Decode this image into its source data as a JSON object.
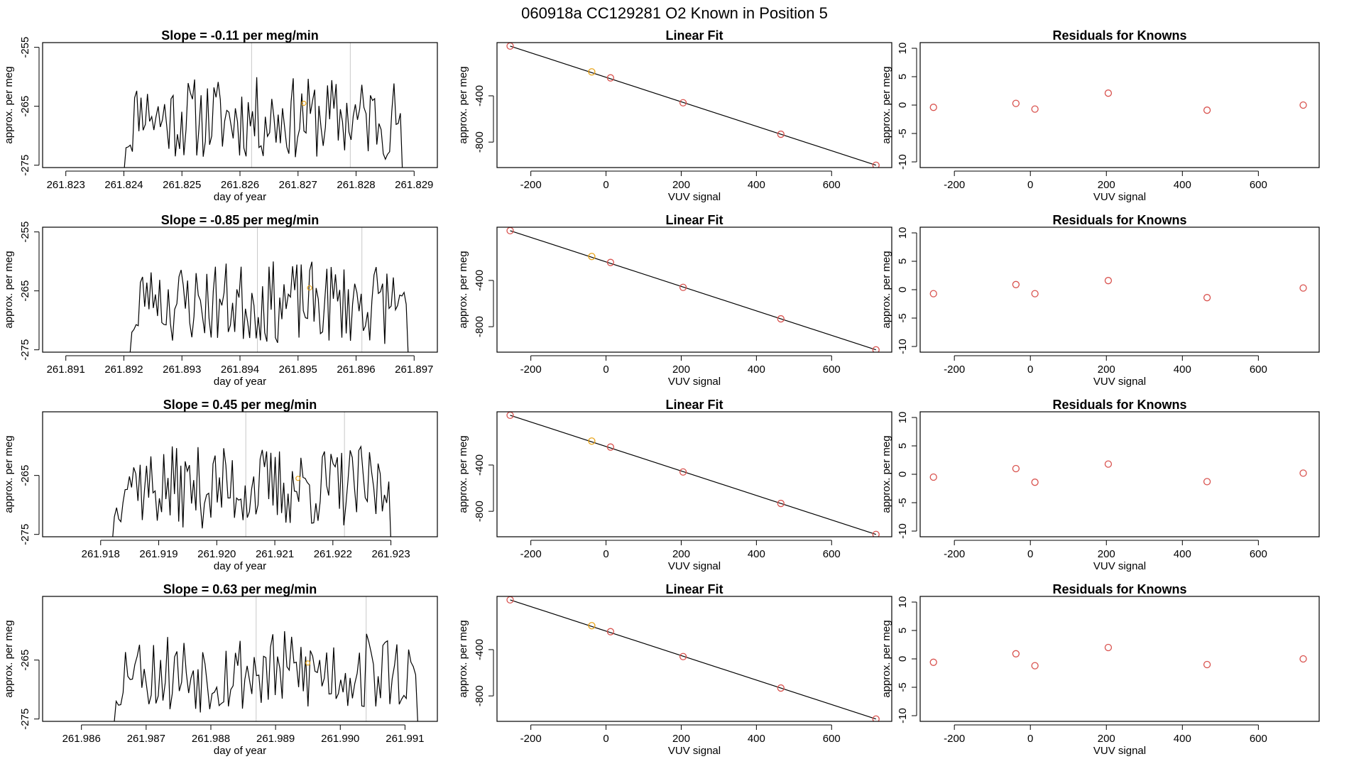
{
  "figure": {
    "header": "060918a      CC129281    O2 Known in Position  5"
  },
  "colors": {
    "fit_point": "#e8a317",
    "line": "#000000",
    "resid_point": "#d9534f",
    "ref_line": "#c8c8c8"
  },
  "chart_data": [
    {
      "type": "line",
      "panel": "time-series-1",
      "title": "Slope =  -0.11  per meg/min",
      "xlabel": "day of year",
      "ylabel": "approx. per meg",
      "x_ticks": [
        "261.823",
        "261.824",
        "261.825",
        "261.826",
        "261.827",
        "261.828",
        "261.829"
      ],
      "x_tick_values": [
        261.823,
        261.824,
        261.825,
        261.826,
        261.827,
        261.828,
        261.829
      ],
      "y_ticks": [
        "-275",
        "-265",
        "-255"
      ],
      "y_tick_values": [
        -275,
        -265,
        -255
      ],
      "xlim": [
        261.8226,
        261.8294
      ],
      "ylim": [
        -275.4,
        -254.2
      ],
      "series_x_range": [
        261.824,
        261.8288
      ],
      "series_seed": 11,
      "marker": {
        "x": 261.8271,
        "y": -264.5
      },
      "vlines": [
        261.8262,
        261.8279
      ]
    },
    {
      "type": "scatter",
      "panel": "linear-fit-1",
      "title": "Linear Fit",
      "xlabel": "VUV signal",
      "ylabel": "approx. per meg",
      "x_ticks": [
        "-200",
        "0",
        "200",
        "400",
        "600"
      ],
      "x_tick_values": [
        -200,
        0,
        200,
        400,
        600
      ],
      "y_ticks": [
        "-800",
        "-400"
      ],
      "y_tick_values": [
        -800,
        -400
      ],
      "xlim": [
        -290,
        760
      ],
      "ylim": [
        -1020,
        60
      ],
      "points": [
        [
          -255,
          30
        ],
        [
          -38,
          -193
        ],
        [
          12,
          -245
        ],
        [
          205,
          -460
        ],
        [
          465,
          -732
        ],
        [
          718,
          -1000
        ]
      ],
      "highlight_index": 1,
      "fit": [
        [
          -255,
          30
        ],
        [
          718,
          -1000
        ]
      ]
    },
    {
      "type": "scatter",
      "panel": "residuals-1",
      "title": "Residuals for Knowns",
      "xlabel": "VUV signal",
      "ylabel": "approx. per meg",
      "x_ticks": [
        "-200",
        "0",
        "200",
        "400",
        "600"
      ],
      "x_tick_values": [
        -200,
        0,
        200,
        400,
        600
      ],
      "y_ticks": [
        "-10",
        "-5",
        "0",
        "5",
        "10"
      ],
      "y_tick_values": [
        -10,
        -5,
        0,
        5,
        10
      ],
      "xlim": [
        -290,
        760
      ],
      "ylim": [
        -11,
        11
      ],
      "points": [
        [
          -255,
          -0.4
        ],
        [
          -38,
          0.3
        ],
        [
          12,
          -0.7
        ],
        [
          205,
          2.1
        ],
        [
          465,
          -0.9
        ],
        [
          718,
          0.0
        ]
      ]
    },
    {
      "type": "line",
      "panel": "time-series-2",
      "title": "Slope =  -0.85  per meg/min",
      "xlabel": "day of year",
      "ylabel": "approx. per meg",
      "x_ticks": [
        "261.891",
        "261.892",
        "261.893",
        "261.894",
        "261.895",
        "261.896",
        "261.897"
      ],
      "x_tick_values": [
        261.891,
        261.892,
        261.893,
        261.894,
        261.895,
        261.896,
        261.897
      ],
      "y_ticks": [
        "-275",
        "-265",
        "-255"
      ],
      "y_tick_values": [
        -275,
        -265,
        -255
      ],
      "xlim": [
        261.8906,
        261.8974
      ],
      "ylim": [
        -275.4,
        -254.2
      ],
      "series_x_range": [
        261.8921,
        261.8969
      ],
      "series_seed": 23,
      "marker": {
        "x": 261.8952,
        "y": -264.5
      },
      "vlines": [
        261.8943,
        261.8961
      ]
    },
    {
      "type": "scatter",
      "panel": "linear-fit-2",
      "title": "Linear Fit",
      "xlabel": "VUV signal",
      "ylabel": "approx. per meg",
      "x_ticks": [
        "-200",
        "0",
        "200",
        "400",
        "600"
      ],
      "x_tick_values": [
        -200,
        0,
        200,
        400,
        600
      ],
      "y_ticks": [
        "-800",
        "-400"
      ],
      "y_tick_values": [
        -800,
        -400
      ],
      "xlim": [
        -290,
        760
      ],
      "ylim": [
        -1020,
        60
      ],
      "points": [
        [
          -255,
          30
        ],
        [
          -38,
          -193
        ],
        [
          12,
          -245
        ],
        [
          205,
          -460
        ],
        [
          465,
          -732
        ],
        [
          718,
          -1000
        ]
      ],
      "highlight_index": 1,
      "fit": [
        [
          -255,
          30
        ],
        [
          718,
          -1000
        ]
      ]
    },
    {
      "type": "scatter",
      "panel": "residuals-2",
      "title": "Residuals for Knowns",
      "xlabel": "VUV signal",
      "ylabel": "approx. per meg",
      "x_ticks": [
        "-200",
        "0",
        "200",
        "400",
        "600"
      ],
      "x_tick_values": [
        -200,
        0,
        200,
        400,
        600
      ],
      "y_ticks": [
        "-10",
        "-5",
        "0",
        "5",
        "10"
      ],
      "y_tick_values": [
        -10,
        -5,
        0,
        5,
        10
      ],
      "xlim": [
        -290,
        760
      ],
      "ylim": [
        -11,
        11
      ],
      "points": [
        [
          -255,
          -0.7
        ],
        [
          -38,
          0.9
        ],
        [
          12,
          -0.7
        ],
        [
          205,
          1.6
        ],
        [
          465,
          -1.4
        ],
        [
          718,
          0.3
        ]
      ]
    },
    {
      "type": "line",
      "panel": "time-series-3",
      "title": "Slope =  0.45  per meg/min",
      "xlabel": "day of year",
      "ylabel": "approx. per meg",
      "x_ticks": [
        "261.918",
        "261.919",
        "261.920",
        "261.921",
        "261.922",
        "261.923"
      ],
      "x_tick_values": [
        261.918,
        261.919,
        261.92,
        261.921,
        261.922,
        261.923
      ],
      "y_ticks": [
        "-275",
        "-265"
      ],
      "y_tick_values": [
        -275,
        -265
      ],
      "xlim": [
        261.917,
        261.9238
      ],
      "ylim": [
        -275.4,
        -254.2
      ],
      "series_x_range": [
        261.9182,
        261.923
      ],
      "series_seed": 37,
      "marker": {
        "x": 261.9214,
        "y": -265.5
      },
      "vlines": [
        261.9205,
        261.9222
      ]
    },
    {
      "type": "scatter",
      "panel": "linear-fit-3",
      "title": "Linear Fit",
      "xlabel": "VUV signal",
      "ylabel": "approx. per meg",
      "x_ticks": [
        "-200",
        "0",
        "200",
        "400",
        "600"
      ],
      "x_tick_values": [
        -200,
        0,
        200,
        400,
        600
      ],
      "y_ticks": [
        "-800",
        "-400"
      ],
      "y_tick_values": [
        -800,
        -400
      ],
      "xlim": [
        -290,
        760
      ],
      "ylim": [
        -1020,
        60
      ],
      "points": [
        [
          -255,
          30
        ],
        [
          -38,
          -193
        ],
        [
          12,
          -245
        ],
        [
          205,
          -460
        ],
        [
          465,
          -732
        ],
        [
          718,
          -1000
        ]
      ],
      "highlight_index": 1,
      "fit": [
        [
          -255,
          30
        ],
        [
          718,
          -1000
        ]
      ]
    },
    {
      "type": "scatter",
      "panel": "residuals-3",
      "title": "Residuals for Knowns",
      "xlabel": "VUV signal",
      "ylabel": "approx. per meg",
      "x_ticks": [
        "-200",
        "0",
        "200",
        "400",
        "600"
      ],
      "x_tick_values": [
        -200,
        0,
        200,
        400,
        600
      ],
      "y_ticks": [
        "-10",
        "-5",
        "0",
        "5",
        "10"
      ],
      "y_tick_values": [
        -10,
        -5,
        0,
        5,
        10
      ],
      "xlim": [
        -290,
        760
      ],
      "ylim": [
        -11,
        11
      ],
      "points": [
        [
          -255,
          -0.5
        ],
        [
          -38,
          1.0
        ],
        [
          12,
          -1.4
        ],
        [
          205,
          1.8
        ],
        [
          465,
          -1.3
        ],
        [
          718,
          0.2
        ]
      ]
    },
    {
      "type": "line",
      "panel": "time-series-4",
      "title": "Slope =  0.63  per meg/min",
      "xlabel": "day of year",
      "ylabel": "approx. per meg",
      "x_ticks": [
        "261.986",
        "261.987",
        "261.988",
        "261.989",
        "261.990",
        "261.991"
      ],
      "x_tick_values": [
        261.986,
        261.987,
        261.988,
        261.989,
        261.99,
        261.991
      ],
      "y_ticks": [
        "-275",
        "-265"
      ],
      "y_tick_values": [
        -275,
        -265
      ],
      "xlim": [
        261.9854,
        261.9915
      ],
      "ylim": [
        -275.4,
        -254.2
      ],
      "series_x_range": [
        261.9865,
        261.9912
      ],
      "series_seed": 53,
      "marker": {
        "x": 261.9895,
        "y": -265.5
      },
      "vlines": [
        261.9887,
        261.9904
      ]
    },
    {
      "type": "scatter",
      "panel": "linear-fit-4",
      "title": "Linear Fit",
      "xlabel": "VUV signal",
      "ylabel": "approx. per meg",
      "x_ticks": [
        "-200",
        "0",
        "200",
        "400",
        "600"
      ],
      "x_tick_values": [
        -200,
        0,
        200,
        400,
        600
      ],
      "y_ticks": [
        "-800",
        "-400"
      ],
      "y_tick_values": [
        -800,
        -400
      ],
      "xlim": [
        -290,
        760
      ],
      "ylim": [
        -1020,
        60
      ],
      "points": [
        [
          -255,
          30
        ],
        [
          -38,
          -193
        ],
        [
          12,
          -245
        ],
        [
          205,
          -460
        ],
        [
          465,
          -732
        ],
        [
          718,
          -1000
        ]
      ],
      "highlight_index": 1,
      "fit": [
        [
          -255,
          30
        ],
        [
          718,
          -1000
        ]
      ]
    },
    {
      "type": "scatter",
      "panel": "residuals-4",
      "title": "Residuals for Knowns",
      "xlabel": "VUV signal",
      "ylabel": "approx. per meg",
      "x_ticks": [
        "-200",
        "0",
        "200",
        "400",
        "600"
      ],
      "x_tick_values": [
        -200,
        0,
        200,
        400,
        600
      ],
      "y_ticks": [
        "-10",
        "-5",
        "0",
        "5",
        "10"
      ],
      "y_tick_values": [
        -10,
        -5,
        0,
        5,
        10
      ],
      "xlim": [
        -290,
        760
      ],
      "ylim": [
        -11,
        11
      ],
      "points": [
        [
          -255,
          -0.6
        ],
        [
          -38,
          0.9
        ],
        [
          12,
          -1.2
        ],
        [
          205,
          2.0
        ],
        [
          465,
          -1.0
        ],
        [
          718,
          0.0
        ]
      ]
    }
  ]
}
